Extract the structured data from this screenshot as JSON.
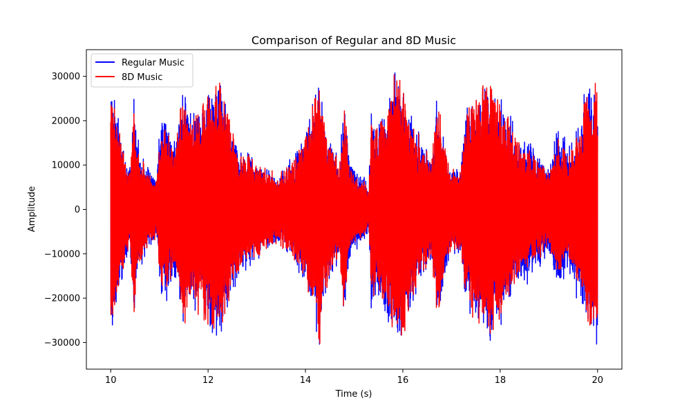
{
  "chart_data": {
    "type": "line",
    "title": "Comparison of Regular and 8D Music",
    "xlabel": "Time (s)",
    "ylabel": "Amplitude",
    "xlim": [
      9.5,
      20.5
    ],
    "ylim": [
      -36000,
      36000
    ],
    "xticks": [
      10,
      12,
      14,
      16,
      18,
      20
    ],
    "yticks": [
      -30000,
      -20000,
      -10000,
      0,
      10000,
      20000,
      30000
    ],
    "ytick_labels": [
      "−30000",
      "−20000",
      "−10000",
      "0",
      "10000",
      "20000",
      "30000"
    ],
    "legend_position": "top-left",
    "grid": false,
    "series": [
      {
        "name": "Regular Music",
        "color": "#0000ff",
        "envelope": [
          [
            10.0,
            30000
          ],
          [
            10.1,
            24000
          ],
          [
            10.2,
            18000
          ],
          [
            10.3,
            12000
          ],
          [
            10.4,
            10000
          ],
          [
            10.48,
            28000
          ],
          [
            10.5,
            22000
          ],
          [
            10.6,
            14000
          ],
          [
            10.8,
            9000
          ],
          [
            10.95,
            8000
          ],
          [
            11.0,
            19000
          ],
          [
            11.1,
            25000
          ],
          [
            11.3,
            16000
          ],
          [
            11.5,
            30000
          ],
          [
            11.6,
            22000
          ],
          [
            11.8,
            24000
          ],
          [
            12.0,
            28000
          ],
          [
            12.2,
            32000
          ],
          [
            12.4,
            24000
          ],
          [
            12.6,
            16000
          ],
          [
            12.8,
            14000
          ],
          [
            13.0,
            12000
          ],
          [
            13.2,
            10000
          ],
          [
            13.4,
            8000
          ],
          [
            13.6,
            10000
          ],
          [
            13.8,
            14000
          ],
          [
            14.0,
            18000
          ],
          [
            14.2,
            28000
          ],
          [
            14.3,
            32000
          ],
          [
            14.4,
            20000
          ],
          [
            14.6,
            14000
          ],
          [
            14.7,
            12000
          ],
          [
            14.8,
            28000
          ],
          [
            14.9,
            13000
          ],
          [
            15.0,
            10000
          ],
          [
            15.2,
            8000
          ],
          [
            15.3,
            5000
          ],
          [
            15.35,
            24000
          ],
          [
            15.5,
            20000
          ],
          [
            15.7,
            27000
          ],
          [
            15.85,
            32000
          ],
          [
            16.0,
            30000
          ],
          [
            16.2,
            22000
          ],
          [
            16.4,
            16000
          ],
          [
            16.6,
            14000
          ],
          [
            16.7,
            28000
          ],
          [
            16.9,
            14000
          ],
          [
            17.0,
            10000
          ],
          [
            17.2,
            12000
          ],
          [
            17.3,
            24000
          ],
          [
            17.5,
            26000
          ],
          [
            17.7,
            30000
          ],
          [
            17.8,
            32000
          ],
          [
            17.9,
            26000
          ],
          [
            18.0,
            28000
          ],
          [
            18.2,
            22000
          ],
          [
            18.4,
            16000
          ],
          [
            18.6,
            18000
          ],
          [
            18.7,
            14000
          ],
          [
            18.8,
            14000
          ],
          [
            19.0,
            10000
          ],
          [
            19.2,
            21000
          ],
          [
            19.4,
            14000
          ],
          [
            19.6,
            22000
          ],
          [
            19.8,
            30000
          ],
          [
            19.9,
            28000
          ],
          [
            20.0,
            32000
          ]
        ]
      },
      {
        "name": "8D Music",
        "color": "#ff0000",
        "envelope": [
          [
            10.0,
            29000
          ],
          [
            10.1,
            22000
          ],
          [
            10.2,
            18000
          ],
          [
            10.3,
            11000
          ],
          [
            10.4,
            9000
          ],
          [
            10.48,
            28000
          ],
          [
            10.5,
            21000
          ],
          [
            10.6,
            13000
          ],
          [
            10.8,
            8000
          ],
          [
            10.95,
            7000
          ],
          [
            11.0,
            17000
          ],
          [
            11.1,
            20000
          ],
          [
            11.3,
            15000
          ],
          [
            11.5,
            30000
          ],
          [
            11.6,
            22000
          ],
          [
            11.8,
            24000
          ],
          [
            12.0,
            27000
          ],
          [
            12.2,
            32000
          ],
          [
            12.4,
            23000
          ],
          [
            12.6,
            15000
          ],
          [
            12.8,
            13000
          ],
          [
            13.0,
            12000
          ],
          [
            13.2,
            10000
          ],
          [
            13.4,
            8000
          ],
          [
            13.6,
            10000
          ],
          [
            13.8,
            13000
          ],
          [
            14.0,
            17000
          ],
          [
            14.2,
            27000
          ],
          [
            14.3,
            32000
          ],
          [
            14.4,
            19000
          ],
          [
            14.6,
            13000
          ],
          [
            14.7,
            11000
          ],
          [
            14.8,
            27000
          ],
          [
            14.9,
            10000
          ],
          [
            15.0,
            8000
          ],
          [
            15.2,
            7000
          ],
          [
            15.3,
            4000
          ],
          [
            15.35,
            22000
          ],
          [
            15.5,
            18000
          ],
          [
            15.7,
            26000
          ],
          [
            15.85,
            32000
          ],
          [
            16.0,
            30000
          ],
          [
            16.2,
            21000
          ],
          [
            16.4,
            15000
          ],
          [
            16.6,
            13000
          ],
          [
            16.7,
            27000
          ],
          [
            16.9,
            13000
          ],
          [
            17.0,
            9000
          ],
          [
            17.2,
            11000
          ],
          [
            17.3,
            23000
          ],
          [
            17.5,
            26000
          ],
          [
            17.7,
            30000
          ],
          [
            17.8,
            32000
          ],
          [
            17.9,
            25000
          ],
          [
            18.0,
            27000
          ],
          [
            18.2,
            21000
          ],
          [
            18.4,
            15000
          ],
          [
            18.6,
            14000
          ],
          [
            18.7,
            12000
          ],
          [
            18.8,
            12000
          ],
          [
            19.0,
            9000
          ],
          [
            19.2,
            17000
          ],
          [
            19.4,
            12000
          ],
          [
            19.6,
            20000
          ],
          [
            19.8,
            29000
          ],
          [
            19.9,
            27000
          ],
          [
            20.0,
            32000
          ]
        ]
      }
    ]
  }
}
